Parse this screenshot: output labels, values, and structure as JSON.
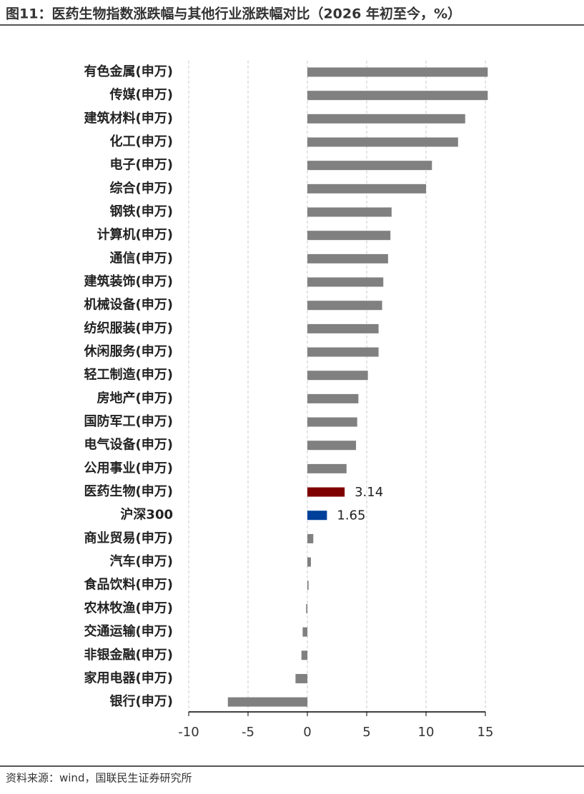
{
  "chart_data": {
    "type": "bar",
    "orientation": "horizontal",
    "title": "图11：医药生物指数涨跌幅与其他行业涨跌幅对比（2026 年初至今，%）",
    "source": "资料来源：wind，国联民生证券研究所",
    "categories": [
      "有色金属(申万)",
      "传媒(申万)",
      "建筑材料(申万)",
      "化工(申万)",
      "电子(申万)",
      "综合(申万)",
      "钢铁(申万)",
      "计算机(申万)",
      "通信(申万)",
      "建筑装饰(申万)",
      "机械设备(申万)",
      "纺织服装(申万)",
      "休闲服务(申万)",
      "轻工制造(申万)",
      "房地产(申万)",
      "国防军工(申万)",
      "电气设备(申万)",
      "公用事业(申万)",
      "医药生物(申万)",
      "沪深300",
      "商业贸易(申万)",
      "汽车(申万)",
      "食品饮料(申万)",
      "农林牧渔(申万)",
      "交通运输(申万)",
      "非银金融(申万)",
      "家用电器(申万)",
      "银行(申万)"
    ],
    "values": [
      15.2,
      15.2,
      13.3,
      12.7,
      10.5,
      10.0,
      7.1,
      7.0,
      6.8,
      6.4,
      6.3,
      6.0,
      6.0,
      5.1,
      4.3,
      4.2,
      4.1,
      3.3,
      3.14,
      1.65,
      0.5,
      0.3,
      0.1,
      -0.1,
      -0.4,
      -0.5,
      -1.0,
      -6.7
    ],
    "color": "#808080",
    "colors": [
      "#808080",
      "#808080",
      "#808080",
      "#808080",
      "#808080",
      "#808080",
      "#808080",
      "#808080",
      "#808080",
      "#808080",
      "#808080",
      "#808080",
      "#808080",
      "#808080",
      "#808080",
      "#808080",
      "#808080",
      "#808080",
      "#7f0000",
      "#003f9a",
      "#808080",
      "#808080",
      "#808080",
      "#808080",
      "#808080",
      "#808080",
      "#808080",
      "#808080"
    ],
    "xlim": [
      -10,
      15
    ],
    "xticks": [
      -10,
      -5,
      0,
      5,
      10,
      15
    ],
    "grid": true
  }
}
